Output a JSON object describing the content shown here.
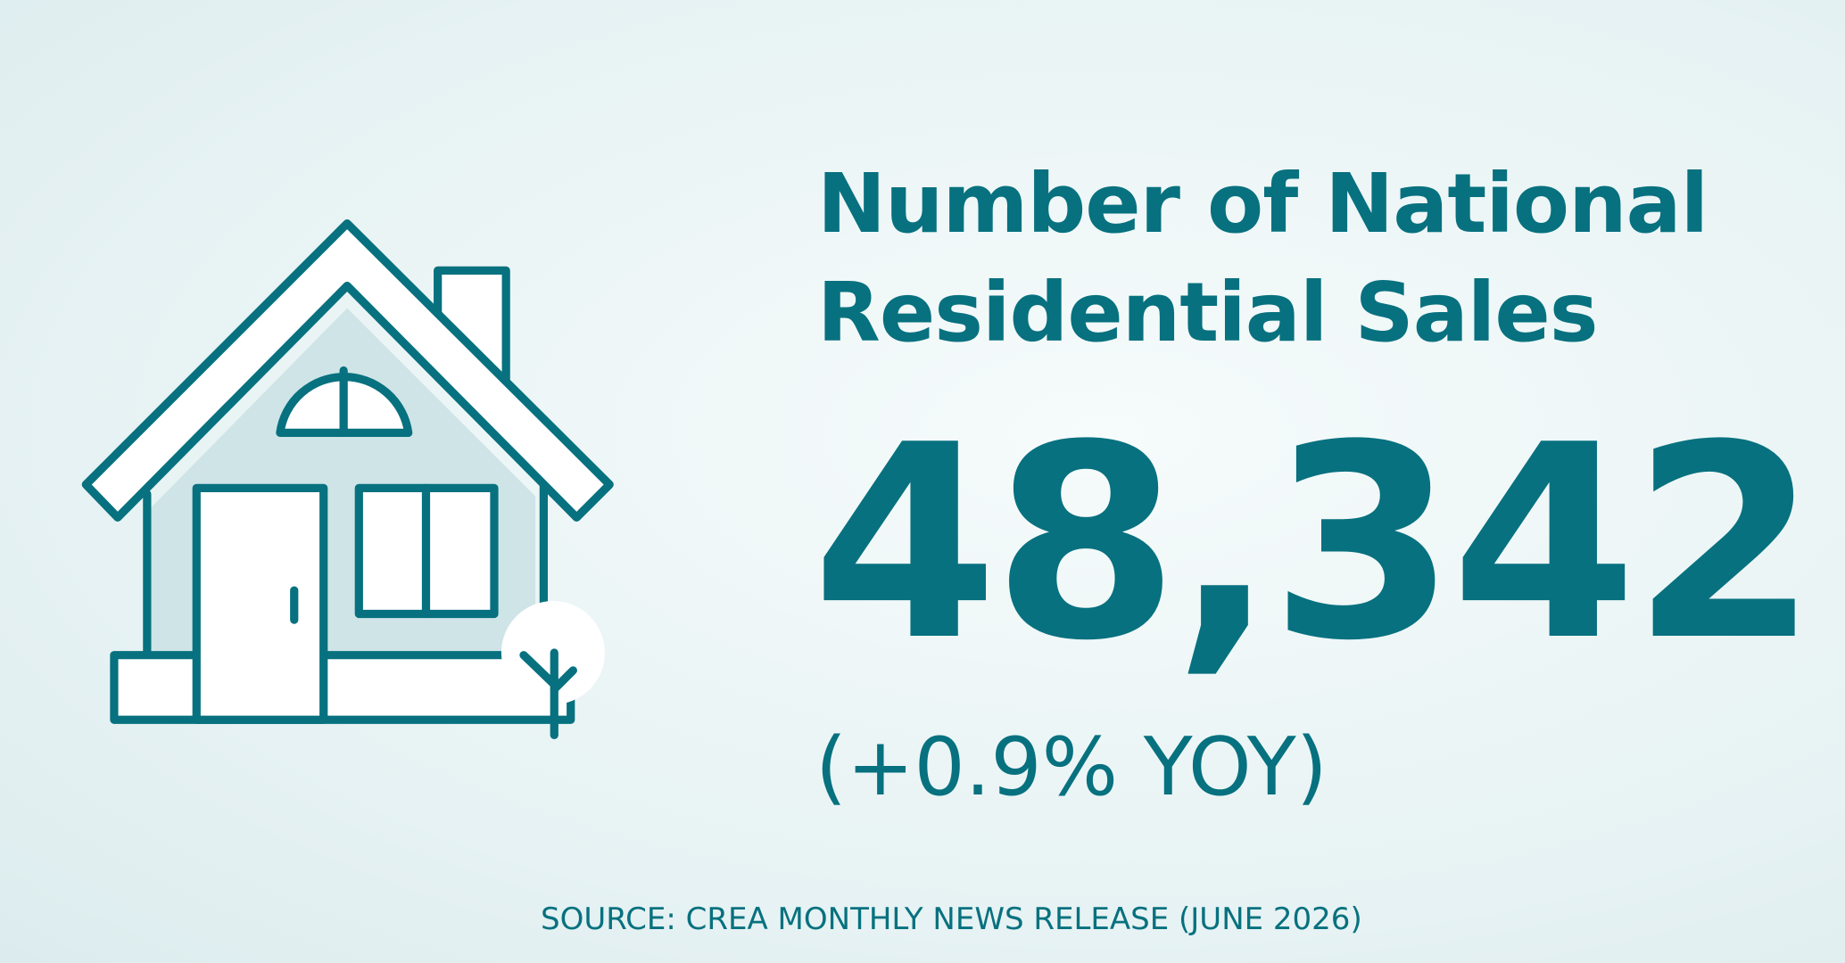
{
  "title": "Number of National Residential Sales",
  "value": "48,342",
  "change": "(+0.9% YOY)",
  "source": "SOURCE: CREA MONTHLY NEWS RELEASE (JUNE 2026)"
}
